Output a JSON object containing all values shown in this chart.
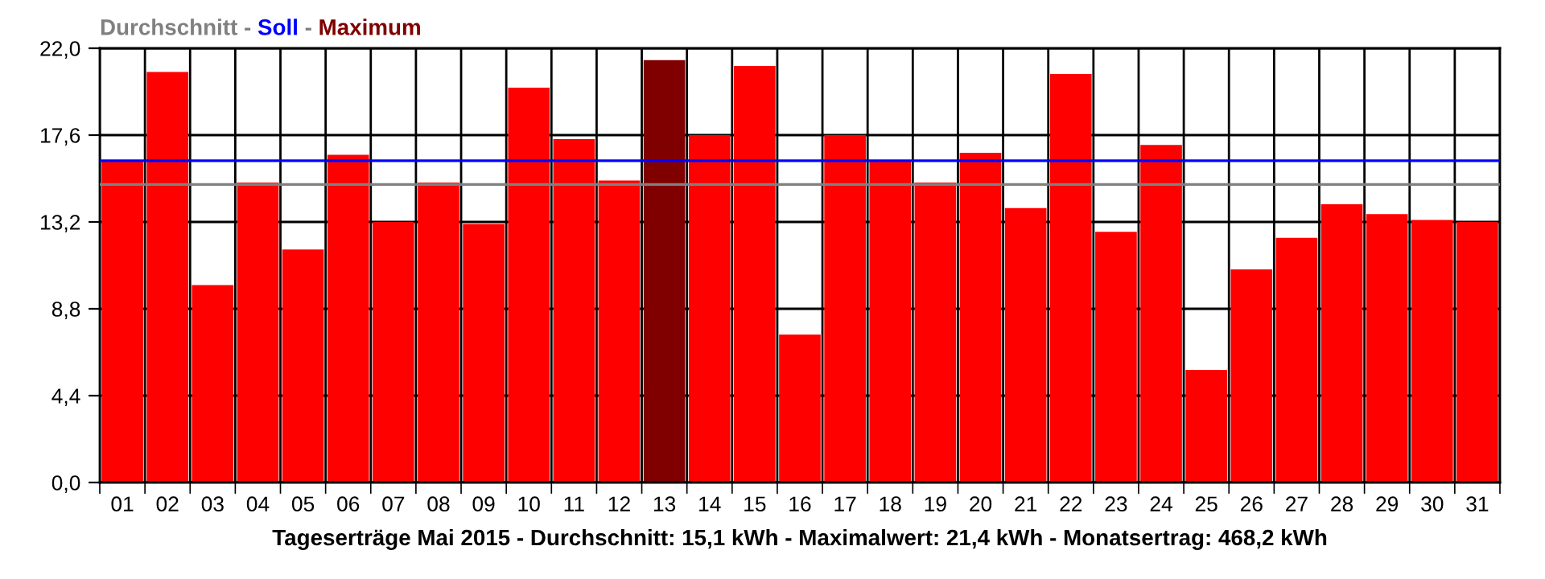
{
  "chart_data": {
    "type": "bar",
    "categories": [
      "01",
      "02",
      "03",
      "04",
      "05",
      "06",
      "07",
      "08",
      "09",
      "10",
      "11",
      "12",
      "13",
      "14",
      "15",
      "16",
      "17",
      "18",
      "19",
      "20",
      "21",
      "22",
      "23",
      "24",
      "25",
      "26",
      "27",
      "28",
      "29",
      "30",
      "31"
    ],
    "values": [
      16.3,
      20.8,
      10.0,
      15.2,
      11.8,
      16.6,
      13.2,
      15.2,
      13.1,
      20.0,
      17.4,
      15.3,
      21.4,
      17.6,
      21.1,
      7.5,
      17.6,
      16.3,
      15.2,
      16.7,
      13.9,
      20.7,
      12.7,
      17.1,
      5.7,
      10.8,
      12.4,
      14.1,
      13.6,
      13.3,
      13.2
    ],
    "colors": [
      "#ff0000",
      "#ff0000",
      "#ff0000",
      "#ff0000",
      "#ff0000",
      "#ff0000",
      "#ff0000",
      "#ff0000",
      "#ff0000",
      "#ff0000",
      "#ff0000",
      "#ff0000",
      "#800000",
      "#ff0000",
      "#ff0000",
      "#ff0000",
      "#ff0000",
      "#ff0000",
      "#ff0000",
      "#ff0000",
      "#ff0000",
      "#ff0000",
      "#ff0000",
      "#ff0000",
      "#ff0000",
      "#ff0000",
      "#ff0000",
      "#ff0000",
      "#ff0000",
      "#ff0000",
      "#ff0000"
    ],
    "ylim": [
      0,
      22
    ],
    "yticks": [
      {
        "value": 0,
        "label": "0,0"
      },
      {
        "value": 4.4,
        "label": "4,4"
      },
      {
        "value": 8.8,
        "label": "8,8"
      },
      {
        "value": 13.2,
        "label": "13,2"
      },
      {
        "value": 17.6,
        "label": "17,6"
      },
      {
        "value": 22,
        "label": "22,0"
      }
    ],
    "grid": true,
    "ref_lines": [
      {
        "axis": "y",
        "value": 15.1,
        "label": "Durchschnitt",
        "color": "#808080"
      },
      {
        "axis": "y",
        "value": 16.3,
        "label": "Soll",
        "color": "#0000ff"
      }
    ],
    "annotations": [
      "-",
      "Maximum"
    ],
    "xlabel": "Tageserträge Mai 2015 - Durchschnitt: 15,1 kWh - Maximalwert: 21,4 kWh - Monatsertrag: 468,2 kWh"
  }
}
